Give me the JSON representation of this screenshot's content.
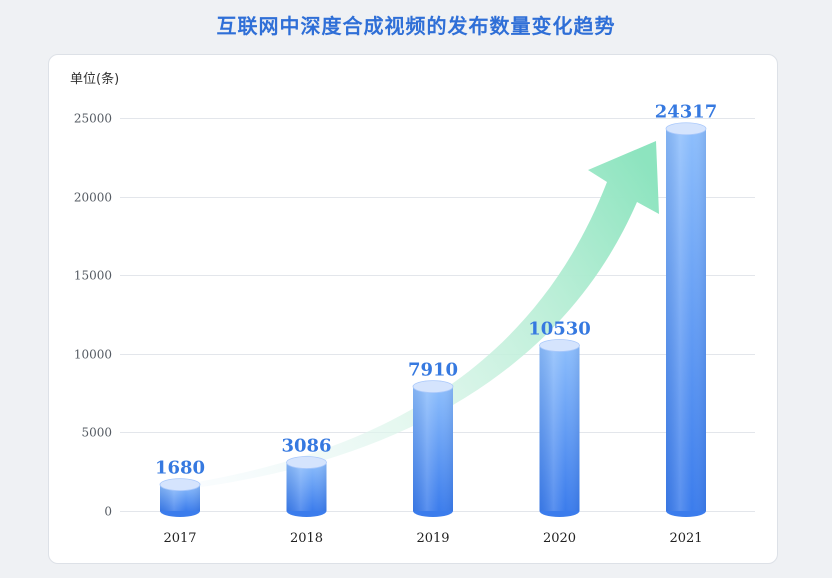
{
  "chart_data": {
    "type": "bar",
    "title": "互联网中深度合成视频的发布数量变化趋势",
    "ylabel": "单位(条)",
    "categories": [
      "2017",
      "2018",
      "2019",
      "2020",
      "2021"
    ],
    "values": [
      1680,
      3086,
      7910,
      10530,
      24317
    ],
    "ylim": [
      0,
      25000
    ],
    "y_ticks": [
      0,
      5000,
      10000,
      15000,
      20000,
      25000
    ],
    "grid": true
  },
  "colors": {
    "title": "#2f6fd7",
    "value_label": "#3679e0",
    "bar_top": "#8dbefc",
    "bar_bottom": "#3b7cec",
    "bar_cap": "#d5e4fd",
    "trend_arrow": "#8de4bf",
    "gridline": "#e3e6eb"
  }
}
